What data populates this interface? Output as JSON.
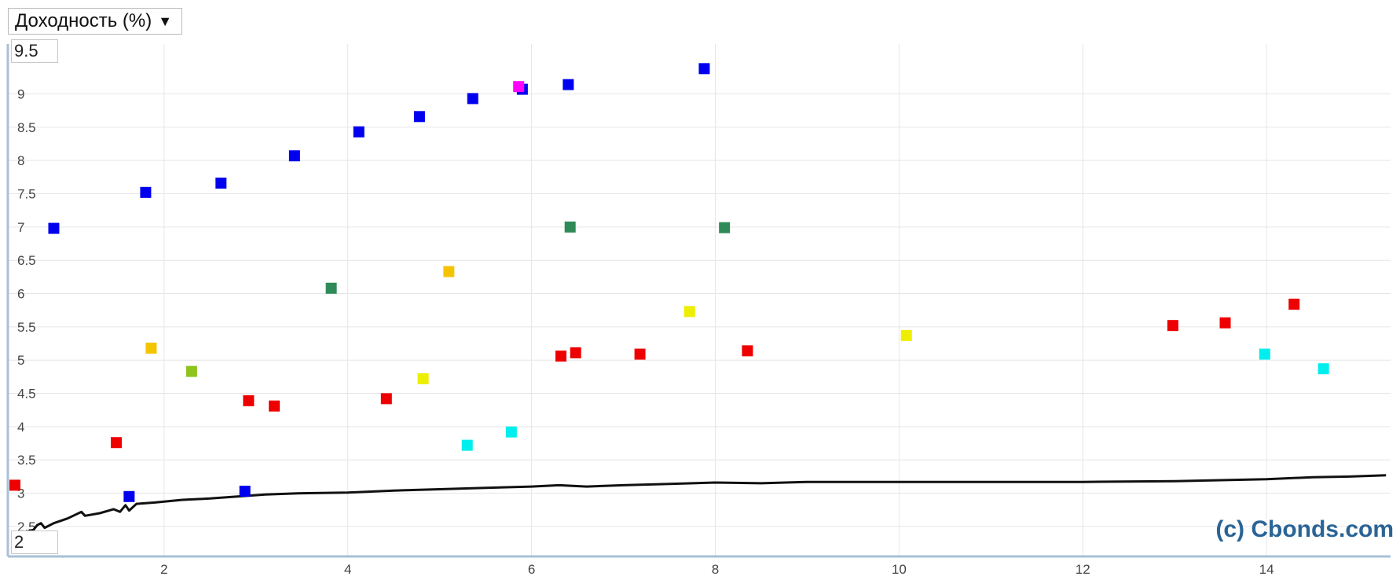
{
  "selector": {
    "label": "Доходность (%)",
    "arrow": "▼"
  },
  "range": {
    "max": "9.5",
    "min": "2"
  },
  "watermark": "(c) Cbonds.com",
  "colors": {
    "blue": "#0000ee",
    "red": "#ee0000",
    "cyan": "#00eeee",
    "yellow": "#eeee00",
    "gold": "#f5c400",
    "green": "#2e8b57",
    "lime": "#8fc31f",
    "magenta": "#ff00ff",
    "curve": "#111111",
    "grid": "#e6e6e6",
    "axis": "#a8c0d8",
    "tick": "#444444"
  },
  "chart_data": {
    "type": "scatter",
    "xlim": [
      0.3,
      15.35
    ],
    "ylim": [
      2.05,
      9.75
    ],
    "x_ticks": [
      2,
      4,
      6,
      8,
      10,
      12,
      14
    ],
    "y_ticks": [
      2.5,
      3,
      3.5,
      4,
      4.5,
      5,
      5.5,
      6,
      6.5,
      7,
      7.5,
      8,
      8.5,
      9
    ],
    "grid": true,
    "series": [
      {
        "color": "blue",
        "points": [
          [
            0.8,
            6.98
          ],
          [
            1.8,
            7.52
          ],
          [
            2.62,
            7.66
          ],
          [
            3.42,
            8.07
          ],
          [
            4.12,
            8.43
          ],
          [
            4.78,
            8.66
          ],
          [
            5.36,
            8.93
          ],
          [
            5.9,
            9.07
          ],
          [
            6.4,
            9.14
          ],
          [
            7.88,
            9.38
          ],
          [
            1.62,
            2.95
          ],
          [
            2.88,
            3.03
          ]
        ]
      },
      {
        "color": "magenta",
        "points": [
          [
            5.86,
            9.11
          ]
        ]
      },
      {
        "color": "green",
        "points": [
          [
            3.82,
            6.08
          ],
          [
            6.42,
            7.0
          ],
          [
            8.1,
            6.99
          ]
        ]
      },
      {
        "color": "lime",
        "points": [
          [
            2.3,
            4.83
          ]
        ]
      },
      {
        "color": "gold",
        "points": [
          [
            1.86,
            5.18
          ],
          [
            5.1,
            6.33
          ]
        ]
      },
      {
        "color": "yellow",
        "points": [
          [
            4.82,
            4.72
          ],
          [
            7.72,
            5.73
          ],
          [
            10.08,
            5.37
          ]
        ]
      },
      {
        "color": "red",
        "points": [
          [
            0.28,
            3.12
          ],
          [
            1.48,
            3.76
          ],
          [
            2.92,
            4.39
          ],
          [
            3.2,
            4.31
          ],
          [
            4.42,
            4.42
          ],
          [
            6.32,
            5.06
          ],
          [
            6.48,
            5.11
          ],
          [
            7.18,
            5.09
          ],
          [
            8.35,
            5.14
          ],
          [
            12.98,
            5.52
          ],
          [
            13.55,
            5.56
          ],
          [
            14.3,
            5.84
          ]
        ]
      },
      {
        "color": "cyan",
        "points": [
          [
            5.3,
            3.72
          ],
          [
            5.78,
            3.92
          ],
          [
            13.98,
            5.09
          ],
          [
            14.62,
            4.87
          ]
        ]
      }
    ],
    "curve": [
      [
        0.5,
        2.42
      ],
      [
        0.58,
        2.45
      ],
      [
        0.62,
        2.52
      ],
      [
        0.66,
        2.55
      ],
      [
        0.7,
        2.48
      ],
      [
        0.8,
        2.55
      ],
      [
        0.95,
        2.62
      ],
      [
        1.1,
        2.72
      ],
      [
        1.14,
        2.66
      ],
      [
        1.3,
        2.7
      ],
      [
        1.45,
        2.76
      ],
      [
        1.52,
        2.72
      ],
      [
        1.58,
        2.82
      ],
      [
        1.62,
        2.74
      ],
      [
        1.7,
        2.84
      ],
      [
        1.9,
        2.86
      ],
      [
        2.2,
        2.9
      ],
      [
        2.5,
        2.92
      ],
      [
        2.8,
        2.95
      ],
      [
        3.1,
        2.98
      ],
      [
        3.5,
        3.0
      ],
      [
        4.0,
        3.01
      ],
      [
        4.5,
        3.04
      ],
      [
        5.0,
        3.06
      ],
      [
        5.5,
        3.08
      ],
      [
        6.0,
        3.1
      ],
      [
        6.3,
        3.12
      ],
      [
        6.6,
        3.1
      ],
      [
        7.0,
        3.12
      ],
      [
        7.5,
        3.14
      ],
      [
        8.0,
        3.16
      ],
      [
        8.5,
        3.15
      ],
      [
        9.0,
        3.17
      ],
      [
        10.0,
        3.17
      ],
      [
        11.0,
        3.17
      ],
      [
        12.0,
        3.17
      ],
      [
        13.0,
        3.18
      ],
      [
        14.0,
        3.21
      ],
      [
        14.5,
        3.24
      ],
      [
        14.9,
        3.25
      ],
      [
        15.3,
        3.27
      ]
    ]
  }
}
